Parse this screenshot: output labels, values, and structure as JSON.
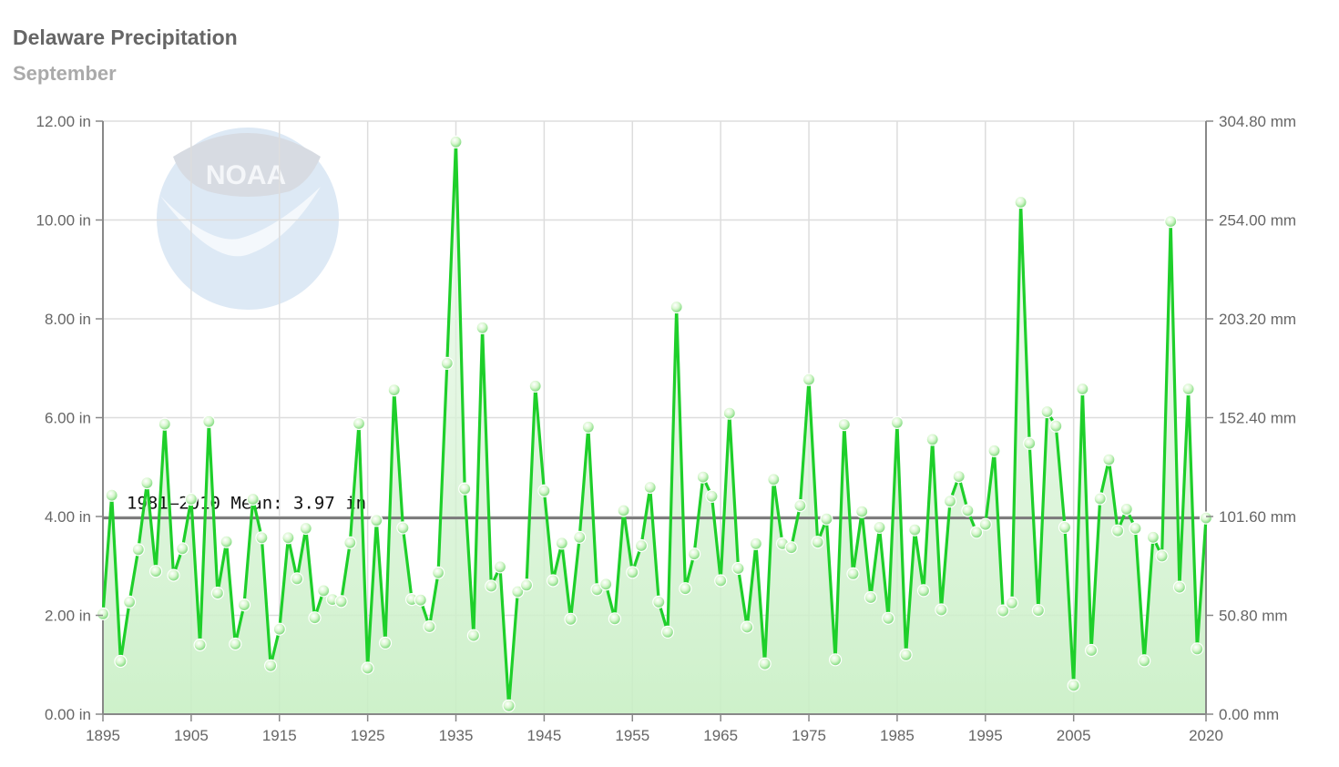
{
  "chart_data": {
    "type": "line",
    "title": "Delaware Precipitation",
    "subtitle": "September",
    "xlim": [
      1895,
      2020
    ],
    "ylim": [
      0,
      12
    ],
    "y_unit": "in",
    "y2_unit": "mm",
    "x_ticks": [
      1895,
      1905,
      1915,
      1925,
      1935,
      1945,
      1955,
      1965,
      1975,
      1985,
      1995,
      2005,
      2020
    ],
    "y_ticks": [
      "0.00 in",
      "2.00 in",
      "4.00 in",
      "6.00 in",
      "8.00 in",
      "10.00 in",
      "12.00 in"
    ],
    "y2_ticks": [
      "0.00 mm",
      "50.80 mm",
      "101.60 mm",
      "152.40 mm",
      "203.20 mm",
      "254.00 mm",
      "304.80 mm"
    ],
    "mean": {
      "value": 3.97,
      "label": "1981–2010 Mean: 3.97 in"
    },
    "x": [
      1895,
      1896,
      1897,
      1898,
      1899,
      1900,
      1901,
      1902,
      1903,
      1904,
      1905,
      1906,
      1907,
      1908,
      1909,
      1910,
      1911,
      1912,
      1913,
      1914,
      1915,
      1916,
      1917,
      1918,
      1919,
      1920,
      1921,
      1922,
      1923,
      1924,
      1925,
      1926,
      1927,
      1928,
      1929,
      1930,
      1931,
      1932,
      1933,
      1934,
      1935,
      1936,
      1937,
      1938,
      1939,
      1940,
      1941,
      1942,
      1943,
      1944,
      1945,
      1946,
      1947,
      1948,
      1949,
      1950,
      1951,
      1952,
      1953,
      1954,
      1955,
      1956,
      1957,
      1958,
      1959,
      1960,
      1961,
      1962,
      1963,
      1964,
      1965,
      1966,
      1967,
      1968,
      1969,
      1970,
      1971,
      1972,
      1973,
      1974,
      1975,
      1976,
      1977,
      1978,
      1979,
      1980,
      1981,
      1982,
      1983,
      1984,
      1985,
      1986,
      1987,
      1988,
      1989,
      1990,
      1991,
      1992,
      1993,
      1994,
      1995,
      1996,
      1997,
      1998,
      1999,
      2000,
      2001,
      2002,
      2003,
      2004,
      2005,
      2006,
      2007,
      2008,
      2009,
      2010,
      2011,
      2012,
      2013,
      2014,
      2015,
      2016,
      2017,
      2018,
      2019,
      2020
    ],
    "values": [
      2.03,
      4.43,
      1.07,
      2.27,
      3.33,
      4.68,
      2.89,
      5.87,
      2.81,
      3.35,
      4.35,
      1.4,
      5.92,
      2.45,
      3.49,
      1.42,
      2.21,
      4.35,
      3.57,
      0.98,
      1.72,
      3.57,
      2.74,
      3.76,
      1.95,
      2.5,
      2.32,
      2.28,
      3.47,
      5.88,
      0.93,
      3.92,
      1.44,
      6.56,
      3.77,
      2.32,
      2.31,
      1.77,
      2.86,
      7.1,
      11.58,
      4.56,
      1.59,
      7.82,
      2.59,
      2.98,
      0.17,
      2.48,
      2.61,
      6.64,
      4.52,
      2.7,
      3.46,
      1.92,
      3.58,
      5.81,
      2.52,
      2.63,
      1.93,
      4.12,
      2.87,
      3.41,
      4.59,
      2.27,
      1.66,
      8.24,
      2.54,
      3.24,
      4.8,
      4.41,
      2.7,
      6.09,
      2.95,
      1.76,
      3.45,
      1.02,
      4.75,
      3.45,
      3.37,
      4.22,
      6.77,
      3.48,
      3.95,
      1.1,
      5.86,
      2.84,
      4.1,
      2.36,
      3.78,
      1.94,
      5.9,
      1.2,
      3.73,
      2.5,
      5.56,
      2.11,
      4.31,
      4.81,
      4.12,
      3.68,
      3.84,
      5.33,
      2.09,
      2.25,
      10.36,
      5.48,
      2.1,
      6.12,
      5.83,
      3.78,
      0.58,
      6.58,
      1.29,
      4.36,
      5.15,
      3.71,
      4.15,
      3.76,
      1.08,
      3.58,
      3.2,
      9.97,
      2.57,
      6.58,
      1.32,
      3.97
    ]
  },
  "watermark_text": "NOAA"
}
